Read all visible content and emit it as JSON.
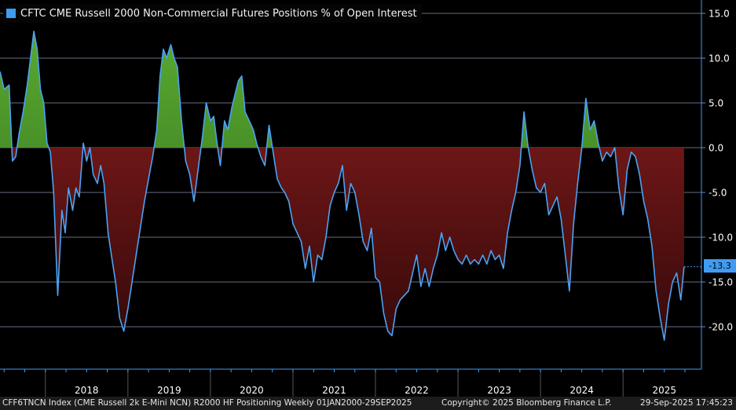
{
  "chart_data": {
    "type": "area",
    "title": "CFTC CME Russell 2000 Non-Commercial Futures Positions % of Open Interest",
    "xlabel": "",
    "ylabel": "",
    "ylim": [
      -25,
      17.5
    ],
    "yticks": [
      15.0,
      10.0,
      5.0,
      0.0,
      -5.0,
      -10.0,
      -15.0,
      -20.0
    ],
    "ytick_labels": [
      "15.0",
      "10.0",
      "5.0",
      "0.0",
      "-5.0",
      "-10.0",
      "-15.0",
      "-20.0"
    ],
    "xlim": [
      2017.45,
      2025.95
    ],
    "x_year_labels": [
      "2018",
      "2019",
      "2020",
      "2021",
      "2022",
      "2023",
      "2024",
      "2025"
    ],
    "last_value": -13.3,
    "last_value_label": "-13.3",
    "legend": "CFTC CME Russell 2000 Non-Commercial Futures Positions % of Open Interest",
    "series": [
      {
        "name": "CFTC CME Russell 2000 Non-Commercial Futures Positions % of Open Interest",
        "x": [
          2017.45,
          2017.5,
          2017.56,
          2017.6,
          2017.64,
          2017.68,
          2017.73,
          2017.78,
          2017.82,
          2017.86,
          2017.9,
          2017.94,
          2017.98,
          2018.02,
          2018.06,
          2018.1,
          2018.15,
          2018.2,
          2018.24,
          2018.28,
          2018.33,
          2018.37,
          2018.41,
          2018.46,
          2018.5,
          2018.54,
          2018.58,
          2018.63,
          2018.67,
          2018.71,
          2018.76,
          2018.8,
          2018.85,
          2018.9,
          2018.95,
          2019.0,
          2019.05,
          2019.1,
          2019.15,
          2019.2,
          2019.25,
          2019.3,
          2019.35,
          2019.39,
          2019.43,
          2019.47,
          2019.52,
          2019.56,
          2019.6,
          2019.65,
          2019.7,
          2019.75,
          2019.8,
          2019.85,
          2019.9,
          2019.95,
          2020.0,
          2020.04,
          2020.08,
          2020.12,
          2020.17,
          2020.21,
          2020.26,
          2020.3,
          2020.34,
          2020.38,
          2020.42,
          2020.47,
          2020.52,
          2020.56,
          2020.61,
          2020.66,
          2020.71,
          2020.76,
          2020.81,
          2020.86,
          2020.9,
          2020.95,
          2021.0,
          2021.05,
          2021.1,
          2021.15,
          2021.2,
          2021.25,
          2021.3,
          2021.35,
          2021.4,
          2021.45,
          2021.5,
          2021.55,
          2021.6,
          2021.65,
          2021.7,
          2021.75,
          2021.8,
          2021.85,
          2021.9,
          2021.95,
          2022.0,
          2022.05,
          2022.1,
          2022.15,
          2022.2,
          2022.25,
          2022.3,
          2022.35,
          2022.4,
          2022.45,
          2022.5,
          2022.55,
          2022.6,
          2022.65,
          2022.7,
          2022.75,
          2022.8,
          2022.85,
          2022.9,
          2022.95,
          2023.0,
          2023.05,
          2023.1,
          2023.15,
          2023.2,
          2023.25,
          2023.3,
          2023.35,
          2023.4,
          2023.45,
          2023.5,
          2023.55,
          2023.6,
          2023.65,
          2023.7,
          2023.75,
          2023.8,
          2023.85,
          2023.9,
          2023.95,
          2024.0,
          2024.05,
          2024.1,
          2024.15,
          2024.2,
          2024.25,
          2024.3,
          2024.35,
          2024.4,
          2024.45,
          2024.5,
          2024.55,
          2024.6,
          2024.65,
          2024.7,
          2024.75,
          2024.8,
          2024.85,
          2024.9,
          2024.95,
          2025.0,
          2025.05,
          2025.1,
          2025.15,
          2025.2,
          2025.25,
          2025.3,
          2025.35,
          2025.4,
          2025.45,
          2025.5,
          2025.55,
          2025.6,
          2025.65,
          2025.7,
          2025.74
        ],
        "values": [
          8.5,
          6.5,
          7.0,
          -1.5,
          -1.0,
          1.5,
          4.0,
          7.0,
          10.0,
          13.0,
          11.0,
          6.5,
          5.0,
          0.5,
          -0.5,
          -5.0,
          -16.5,
          -7.0,
          -9.5,
          -4.5,
          -7.0,
          -4.5,
          -5.5,
          0.5,
          -1.5,
          0.0,
          -3.0,
          -4.0,
          -2.0,
          -4.0,
          -9.5,
          -12.0,
          -15.0,
          -19.0,
          -20.5,
          -18.0,
          -15.0,
          -12.0,
          -9.0,
          -6.0,
          -3.5,
          -1.0,
          2.0,
          8.0,
          11.0,
          10.0,
          11.5,
          10.0,
          9.0,
          3.0,
          -1.5,
          -3.0,
          -6.0,
          -2.5,
          1.0,
          5.0,
          3.0,
          3.5,
          0.5,
          -2.0,
          3.0,
          2.0,
          4.5,
          6.0,
          7.5,
          8.0,
          4.0,
          3.0,
          2.0,
          0.5,
          -1.0,
          -2.0,
          2.5,
          -0.5,
          -3.5,
          -4.5,
          -5.0,
          -6.0,
          -8.5,
          -9.5,
          -10.5,
          -13.5,
          -11.0,
          -15.0,
          -12.0,
          -12.5,
          -10.0,
          -6.5,
          -5.0,
          -4.0,
          -2.0,
          -7.0,
          -4.0,
          -5.0,
          -7.5,
          -10.5,
          -11.5,
          -9.0,
          -14.5,
          -15.0,
          -18.5,
          -20.5,
          -21.0,
          -18.0,
          -17.0,
          -16.5,
          -16.0,
          -14.0,
          -12.0,
          -15.5,
          -13.5,
          -15.5,
          -13.5,
          -12.0,
          -9.5,
          -11.5,
          -10.0,
          -11.5,
          -12.5,
          -13.0,
          -12.0,
          -13.0,
          -12.5,
          -13.0,
          -12.0,
          -13.0,
          -11.5,
          -12.5,
          -12.0,
          -13.5,
          -9.5,
          -7.0,
          -5.0,
          -2.0,
          4.0,
          0.0,
          -2.5,
          -4.5,
          -5.0,
          -4.0,
          -7.5,
          -6.5,
          -5.5,
          -8.0,
          -12.0,
          -16.0,
          -8.5,
          -4.0,
          0.0,
          5.5,
          2.0,
          3.0,
          0.5,
          -1.5,
          -0.5,
          -1.0,
          0.0,
          -4.5,
          -7.5,
          -2.5,
          -0.5,
          -1.0,
          -3.0,
          -6.0,
          -8.0,
          -11.0,
          -16.0,
          -19.0,
          -21.5,
          -17.5,
          -15.0,
          -14.0,
          -17.0,
          -13.3
        ]
      }
    ]
  },
  "footer": {
    "left": "CFF6TNCN Index (CME Russell 2k E-Mini NCN) R2000 HF Positioning  Weekly 01JAN2000-29SEP2025",
    "center": "Copyright© 2025 Bloomberg Finance L.P.",
    "right": "29-Sep-2025 17:45:23"
  },
  "colors": {
    "background": "#000000",
    "grid": "#6f6f7f",
    "line": "#4aa3f5",
    "positive_fill_top": "#4e9a2a",
    "positive_fill_bottom": "#2f6d1c",
    "negative_fill_top": "#8a1d1d",
    "negative_fill_bottom": "#3d0c0c",
    "axis": "#3f9cf2",
    "label_box": "#3f9cf2"
  }
}
